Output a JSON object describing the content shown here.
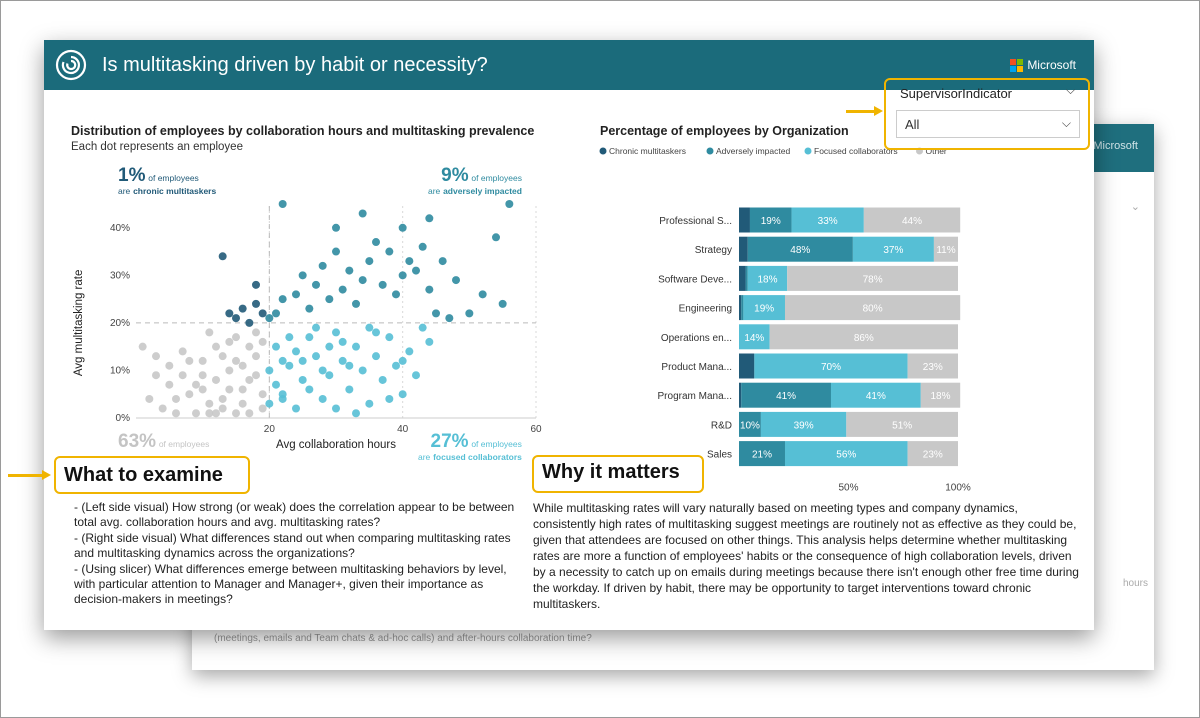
{
  "header": {
    "title": "Is multitasking driven by habit or necessity?",
    "brand": "Microsoft",
    "brand_colors": [
      "#f25022",
      "#7fba00",
      "#00a4ef",
      "#ffb900"
    ],
    "bg_color": "#1b6b7b",
    "logo_icon": "viva-insights-logo-icon"
  },
  "left_chart": {
    "title": "Distribution of employees by collaboration hours and multitasking prevalence",
    "subtitle": "Each dot represents an employee",
    "stats": {
      "top_left": {
        "pct": "1%",
        "label1": "of employees",
        "label2_prefix": "are",
        "label2_bold": "chronic multitaskers"
      },
      "top_right": {
        "pct": "9%",
        "label1": "of employees",
        "label2_prefix": "are",
        "label2_bold": "adversely impacted"
      },
      "bottom_left": {
        "pct": "63%",
        "label1": "of employees"
      },
      "bottom_right": {
        "pct": "27%",
        "label1": "of employees",
        "label2_prefix": "are",
        "label2_bold": "focused collaborators"
      }
    }
  },
  "right_chart": {
    "title": "Percentage of employees by Organization",
    "xticks": [
      "50%",
      "100%"
    ]
  },
  "slicer": {
    "title": "SupervisorIndicator",
    "value": "All"
  },
  "examine": {
    "heading": "What to examine",
    "items": [
      "- (Left side visual) How strong (or weak) does the correlation appear to be between total avg. collaboration hours and avg. multitasking rates?",
      "- (Right side visual) What differences stand out when comparing multitasking rates and multitasking dynamics across the organizations?",
      "- (Using slicer) What differences emerge between multitasking behaviors by level, with particular attention to Manager and Manager+, given their importance as decision-makers in meetings?"
    ]
  },
  "why": {
    "heading": "Why it matters",
    "body": "While multitasking rates will vary naturally based on meeting types and company dynamics, consistently high rates of multitasking suggest meetings are routinely not as effective as they could be, given that attendees are focused on other things. This analysis helps determine whether multitasking rates are more a function of employees' habits or the consequence of high collaboration levels, driven by a necessity to catch up on emails during  meetings because there isn't enough other free time during the workday. If driven by habit, there may be opportunity to target interventions toward chronic multitaskers."
  },
  "background_card": {
    "brand": "Microsoft",
    "partial_text_right": "hours",
    "partial_text_bottom": "(meetings, emails and Team chats & ad-hoc calls) and after-hours collaboration time?"
  },
  "chart_data": [
    {
      "type": "scatter",
      "title": "Distribution of employees by collaboration hours and multitasking prevalence",
      "xlabel": "Avg collaboration hours",
      "ylabel": "Avg multitasking rate",
      "xlim": [
        0,
        60
      ],
      "ylim": [
        0,
        45
      ],
      "xticks": [
        20,
        40,
        60
      ],
      "yticks": [
        0,
        10,
        20,
        30,
        40
      ],
      "ytick_labels": [
        "0%",
        "10%",
        "20%",
        "30%",
        "40%"
      ],
      "xticklabels": [
        "20",
        "40",
        "60"
      ],
      "thresholds": {
        "x": 20,
        "y": 20
      },
      "grid": false,
      "groups": [
        {
          "name": "chronic multitaskers",
          "color": "#215a78"
        },
        {
          "name": "adversely impacted",
          "color": "#2f8ba0"
        },
        {
          "name": "focused collaborators",
          "color": "#56bfd5"
        },
        {
          "name": "other",
          "color": "#c8c8c8"
        }
      ],
      "points": [
        [
          6,
          4
        ],
        [
          8,
          5
        ],
        [
          9,
          7
        ],
        [
          10,
          6
        ],
        [
          11,
          3
        ],
        [
          7,
          9
        ],
        [
          12,
          8
        ],
        [
          13,
          4
        ],
        [
          14,
          10
        ],
        [
          15,
          12
        ],
        [
          10,
          12
        ],
        [
          16,
          3
        ],
        [
          17,
          8
        ],
        [
          18,
          13
        ],
        [
          19,
          16
        ],
        [
          14,
          16
        ],
        [
          12,
          15
        ],
        [
          8,
          12
        ],
        [
          5,
          11
        ],
        [
          9,
          1
        ],
        [
          11,
          1
        ],
        [
          13,
          2
        ],
        [
          15,
          1
        ],
        [
          17,
          1
        ],
        [
          19,
          2
        ],
        [
          16,
          6
        ],
        [
          18,
          9
        ],
        [
          13,
          13
        ],
        [
          4,
          2
        ],
        [
          6,
          1
        ],
        [
          2,
          4
        ],
        [
          1,
          15
        ],
        [
          3,
          13
        ],
        [
          7,
          14
        ],
        [
          18,
          18
        ],
        [
          15,
          17
        ],
        [
          11,
          18
        ],
        [
          10,
          9
        ],
        [
          19,
          5
        ],
        [
          16,
          11
        ],
        [
          5,
          7
        ],
        [
          3,
          9
        ],
        [
          20,
          3
        ],
        [
          21,
          7
        ],
        [
          22,
          12
        ],
        [
          17,
          15
        ],
        [
          14,
          6
        ],
        [
          20,
          10
        ],
        [
          22,
          4
        ],
        [
          12,
          1
        ],
        [
          22,
          5
        ],
        [
          23,
          11
        ],
        [
          24,
          14
        ],
        [
          25,
          8
        ],
        [
          26,
          17
        ],
        [
          27,
          13
        ],
        [
          28,
          4
        ],
        [
          29,
          9
        ],
        [
          30,
          18
        ],
        [
          31,
          12
        ],
        [
          32,
          6
        ],
        [
          33,
          15
        ],
        [
          34,
          10
        ],
        [
          35,
          3
        ],
        [
          36,
          13
        ],
        [
          37,
          8
        ],
        [
          38,
          17
        ],
        [
          39,
          11
        ],
        [
          40,
          5
        ],
        [
          41,
          14
        ],
        [
          42,
          9
        ],
        [
          43,
          19
        ],
        [
          44,
          16
        ],
        [
          30,
          2
        ],
        [
          24,
          2
        ],
        [
          26,
          6
        ],
        [
          28,
          10
        ],
        [
          33,
          1
        ],
        [
          29,
          15
        ],
        [
          35,
          19
        ],
        [
          23,
          17
        ],
        [
          27,
          19
        ],
        [
          31,
          16
        ],
        [
          38,
          4
        ],
        [
          21,
          15
        ],
        [
          25,
          12
        ],
        [
          32,
          11
        ],
        [
          36,
          18
        ],
        [
          40,
          12
        ],
        [
          20,
          21
        ],
        [
          21,
          22
        ],
        [
          22,
          25
        ],
        [
          24,
          26
        ],
        [
          25,
          30
        ],
        [
          26,
          23
        ],
        [
          27,
          28
        ],
        [
          28,
          32
        ],
        [
          29,
          25
        ],
        [
          30,
          35
        ],
        [
          31,
          27
        ],
        [
          32,
          31
        ],
        [
          33,
          24
        ],
        [
          34,
          29
        ],
        [
          35,
          33
        ],
        [
          36,
          37
        ],
        [
          37,
          28
        ],
        [
          38,
          35
        ],
        [
          39,
          26
        ],
        [
          40,
          30
        ],
        [
          41,
          33
        ],
        [
          42,
          31
        ],
        [
          43,
          36
        ],
        [
          44,
          27
        ],
        [
          46,
          33
        ],
        [
          48,
          29
        ],
        [
          50,
          22
        ],
        [
          52,
          26
        ],
        [
          54,
          38
        ],
        [
          56,
          45
        ],
        [
          55,
          24
        ],
        [
          45,
          22
        ],
        [
          47,
          21
        ],
        [
          34,
          43
        ],
        [
          44,
          42
        ],
        [
          22,
          45
        ],
        [
          30,
          40
        ],
        [
          40,
          40
        ],
        [
          13,
          34
        ],
        [
          15,
          21
        ],
        [
          16,
          23
        ],
        [
          18,
          24
        ],
        [
          17,
          20
        ],
        [
          19,
          22
        ],
        [
          14,
          22
        ],
        [
          18,
          28
        ]
      ]
    },
    {
      "type": "bar",
      "stacked": true,
      "orientation": "horizontal",
      "title": "Percentage of employees by Organization",
      "categories": [
        "Professional S...",
        "Strategy",
        "Software Deve...",
        "Engineering",
        "Operations en...",
        "Product Mana...",
        "Program Mana...",
        "R&D",
        "Sales"
      ],
      "xlim": [
        0,
        100
      ],
      "legend_position": "top-left",
      "series": [
        {
          "name": "Chronic multitaskers",
          "color": "#215a78",
          "values": [
            5,
            4,
            3,
            1,
            0,
            7,
            1,
            0,
            0
          ]
        },
        {
          "name": "Adversely impacted",
          "color": "#2f8ba0",
          "values": [
            19,
            48,
            1,
            1,
            0,
            0,
            41,
            10,
            21
          ]
        },
        {
          "name": "Focused collaborators",
          "color": "#56bfd5",
          "values": [
            33,
            37,
            18,
            19,
            14,
            70,
            41,
            39,
            56
          ]
        },
        {
          "name": "Other",
          "color": "#c8c8c8",
          "values": [
            44,
            11,
            78,
            80,
            86,
            23,
            18,
            51,
            23
          ]
        }
      ]
    }
  ]
}
